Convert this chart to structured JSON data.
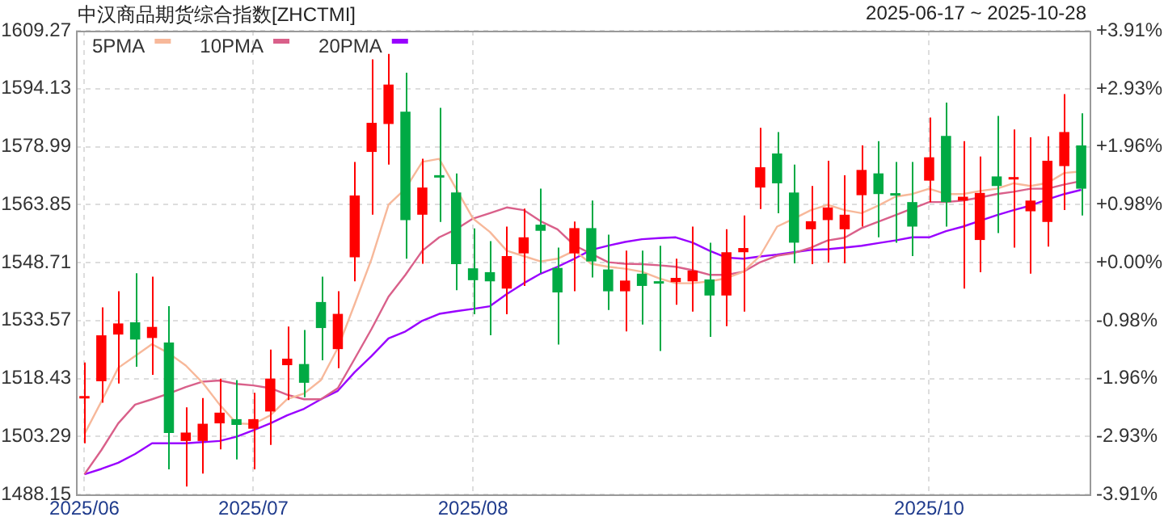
{
  "chart_data": {
    "type": "candlestick",
    "title": "中汉商品期货综合指数[ZHCTMI]",
    "subtitle": "2025-06-17 ~ 2025-10-28",
    "categories": [
      "2025/06",
      null,
      null,
      null,
      null,
      null,
      null,
      null,
      null,
      null,
      "2025/07",
      null,
      null,
      null,
      null,
      null,
      null,
      null,
      null,
      null,
      null,
      null,
      null,
      "2025/08",
      null,
      null,
      null,
      null,
      null,
      null,
      null,
      null,
      null,
      null,
      null,
      null,
      null,
      null,
      null,
      null,
      null,
      null,
      null,
      null,
      null,
      null,
      null,
      null,
      null,
      null,
      "2025/10",
      null,
      null,
      null,
      null,
      null,
      null,
      null,
      null,
      null
    ],
    "ohlc": [
      [
        1513.2,
        1522.6,
        1501.5,
        1513.4
      ],
      [
        1517.7,
        1537.0,
        1512.1,
        1529.7
      ],
      [
        1529.9,
        1541.2,
        1517.1,
        1532.8
      ],
      [
        1533.1,
        1545.9,
        1521.5,
        1528.6
      ],
      [
        1529.0,
        1545.0,
        1519.4,
        1531.9
      ],
      [
        1527.8,
        1537.3,
        1494.7,
        1504.2
      ],
      [
        1502.1,
        1510.9,
        1490.2,
        1504.3
      ],
      [
        1502.1,
        1513.3,
        1493.6,
        1506.6
      ],
      [
        1506.7,
        1518.4,
        1499.9,
        1509.5
      ],
      [
        1507.8,
        1518.0,
        1497.3,
        1506.3
      ],
      [
        1505.3,
        1514.7,
        1494.7,
        1507.8
      ],
      [
        1509.8,
        1526.0,
        1501.1,
        1518.4
      ],
      [
        1521.9,
        1532.0,
        1512.8,
        1523.6
      ],
      [
        1522.2,
        1531.1,
        1513.5,
        1517.3
      ],
      [
        1538.4,
        1545.0,
        1523.2,
        1531.6
      ],
      [
        1526.1,
        1541.2,
        1521.1,
        1535.3
      ],
      [
        1550.1,
        1575.0,
        1543.8,
        1566.2
      ],
      [
        1577.6,
        1601.8,
        1561.2,
        1585.2
      ],
      [
        1584.9,
        1603.2,
        1574.3,
        1595.2
      ],
      [
        1588.1,
        1598.3,
        1549.7,
        1559.8
      ],
      [
        1561.2,
        1575.8,
        1548.4,
        1568.3
      ],
      [
        1571.3,
        1589.1,
        1559.3,
        1570.9
      ],
      [
        1567.0,
        1572.0,
        1541.5,
        1548.3
      ],
      [
        1547.2,
        1557.6,
        1535.2,
        1544.1
      ],
      [
        1546.2,
        1554.3,
        1529.7,
        1543.8
      ],
      [
        1541.9,
        1558.1,
        1535.2,
        1550.4
      ],
      [
        1551.1,
        1562.8,
        1542.6,
        1555.3
      ],
      [
        1558.6,
        1568.0,
        1545.9,
        1557.0
      ],
      [
        1547.3,
        1552.6,
        1527.3,
        1540.9
      ],
      [
        1551.1,
        1559.4,
        1541.2,
        1557.7
      ],
      [
        1557.7,
        1564.9,
        1544.8,
        1549.0
      ],
      [
        1546.9,
        1556.0,
        1536.3,
        1541.2
      ],
      [
        1541.2,
        1551.8,
        1530.7,
        1544.0
      ],
      [
        1545.8,
        1551.8,
        1532.5,
        1542.6
      ],
      [
        1543.6,
        1553.1,
        1525.6,
        1543.2
      ],
      [
        1543.6,
        1549.7,
        1537.7,
        1544.7
      ],
      [
        1543.8,
        1558.1,
        1535.9,
        1546.6
      ],
      [
        1544.3,
        1553.9,
        1529.3,
        1540.1
      ],
      [
        1540.1,
        1557.4,
        1532.1,
        1551.4
      ],
      [
        1551.4,
        1561.0,
        1535.9,
        1552.5
      ],
      [
        1568.3,
        1583.9,
        1562.7,
        1573.6
      ],
      [
        1577.2,
        1582.8,
        1561.6,
        1569.4
      ],
      [
        1567.0,
        1574.3,
        1548.5,
        1553.9
      ],
      [
        1557.4,
        1568.7,
        1548.3,
        1559.5
      ],
      [
        1559.8,
        1575.3,
        1548.7,
        1563.1
      ],
      [
        1557.4,
        1571.5,
        1548.5,
        1561.2
      ],
      [
        1566.3,
        1579.3,
        1558.1,
        1572.9
      ],
      [
        1572.0,
        1580.4,
        1555.3,
        1566.6
      ],
      [
        1566.4,
        1575.0,
        1553.9,
        1566.2
      ],
      [
        1564.5,
        1575.0,
        1550.4,
        1558.1
      ],
      [
        1570.1,
        1586.6,
        1564.5,
        1576.2
      ],
      [
        1581.8,
        1590.5,
        1558.1,
        1564.5
      ],
      [
        1564.9,
        1580.4,
        1541.9,
        1565.9
      ],
      [
        1554.6,
        1576.4,
        1546.2,
        1566.9
      ],
      [
        1571.2,
        1587.0,
        1556.4,
        1568.7
      ],
      [
        1570.4,
        1583.5,
        1552.6,
        1570.6
      ],
      [
        1562.1,
        1581.4,
        1545.8,
        1564.9
      ],
      [
        1559.3,
        1581.7,
        1552.9,
        1575.3
      ],
      [
        1573.9,
        1592.7,
        1562.4,
        1582.8
      ],
      [
        1579.3,
        1587.7,
        1561.0,
        1568.0
      ]
    ],
    "colors": [
      "#ff0000",
      "#ff0000",
      "#ff0000",
      "#00aa44",
      "#ff0000",
      "#00aa44",
      "#ff0000",
      "#ff0000",
      "#ff0000",
      "#00aa44",
      "#ff0000",
      "#ff0000",
      "#ff0000",
      "#00aa44",
      "#00aa44",
      "#ff0000",
      "#ff0000",
      "#ff0000",
      "#ff0000",
      "#00aa44",
      "#ff0000",
      "#00aa44",
      "#00aa44",
      "#00aa44",
      "#00aa44",
      "#ff0000",
      "#ff0000",
      "#00aa44",
      "#00aa44",
      "#ff0000",
      "#00aa44",
      "#00aa44",
      "#ff0000",
      "#00aa44",
      "#00aa44",
      "#ff0000",
      "#ff0000",
      "#00aa44",
      "#ff0000",
      "#ff0000",
      "#ff0000",
      "#00aa44",
      "#00aa44",
      "#ff0000",
      "#ff0000",
      "#ff0000",
      "#ff0000",
      "#00aa44",
      "#00aa44",
      "#00aa44",
      "#ff0000",
      "#00aa44",
      "#ff0000",
      "#ff0000",
      "#00aa44",
      "#ff0000",
      "#ff0000",
      "#ff0000",
      "#ff0000",
      "#00aa44"
    ],
    "series": [
      {
        "name": "5PMA",
        "type": "line",
        "color": "#f7b89a",
        "values": [
          1503.9,
          1512.4,
          1521.2,
          1524.3,
          1527.4,
          1525.0,
          1521.8,
          1517.3,
          1511.6,
          1506.7,
          1506.5,
          1508.8,
          1513.0,
          1514.5,
          1518.0,
          1526.4,
          1537.9,
          1549.7,
          1563.8,
          1568.0,
          1575.0,
          1575.8,
          1568.0,
          1560.2,
          1556.7,
          1551.8,
          1550.4,
          1549.0,
          1549.7,
          1551.8,
          1548.4,
          1547.6,
          1547.1,
          1546.3,
          1544.6,
          1543.3,
          1543.3,
          1543.8,
          1544.6,
          1546.3,
          1550.5,
          1558.1,
          1560.2,
          1562.4,
          1563.8,
          1562.4,
          1561.6,
          1563.6,
          1565.9,
          1566.6,
          1568.0,
          1566.6,
          1566.6,
          1567.4,
          1568.0,
          1569.4,
          1568.7,
          1569.5,
          1572.1,
          1572.5
        ]
      },
      {
        "name": "10PMA",
        "type": "line",
        "color": "#d9608a",
        "values": [
          1493.4,
          1499.7,
          1506.7,
          1511.6,
          1513.0,
          1514.5,
          1516.2,
          1517.6,
          1517.9,
          1517.0,
          1516.6,
          1515.9,
          1514.2,
          1513.0,
          1513.0,
          1515.9,
          1523.6,
          1531.4,
          1539.8,
          1545.5,
          1551.8,
          1555.3,
          1557.4,
          1560.2,
          1561.6,
          1563.1,
          1562.4,
          1559.5,
          1557.4,
          1553.2,
          1551.0,
          1548.8,
          1548.4,
          1548.3,
          1548.0,
          1547.6,
          1546.7,
          1545.5,
          1545.5,
          1546.3,
          1548.8,
          1550.5,
          1551.2,
          1552.6,
          1554.5,
          1555.2,
          1557.7,
          1559.4,
          1561.1,
          1562.8,
          1564.5,
          1564.5,
          1564.9,
          1565.7,
          1566.6,
          1567.2,
          1568.0,
          1568.0,
          1569.1,
          1570.0
        ]
      },
      {
        "name": "20PMA",
        "type": "line",
        "color": "#9900ff",
        "values": [
          1493.4,
          1494.8,
          1496.4,
          1498.7,
          1501.5,
          1501.5,
          1501.5,
          1501.8,
          1502.1,
          1503.2,
          1504.9,
          1506.7,
          1508.8,
          1510.5,
          1513.0,
          1515.2,
          1520.1,
          1524.3,
          1528.9,
          1530.7,
          1533.5,
          1535.3,
          1536.0,
          1536.6,
          1537.3,
          1540.5,
          1543.3,
          1545.8,
          1547.6,
          1549.7,
          1552.0,
          1553.1,
          1554.1,
          1554.8,
          1555.1,
          1555.3,
          1553.9,
          1551.8,
          1550.0,
          1549.7,
          1550.3,
          1550.8,
          1551.4,
          1552.0,
          1552.2,
          1552.6,
          1553.1,
          1553.8,
          1554.5,
          1555.3,
          1555.3,
          1556.9,
          1558.1,
          1559.6,
          1561.1,
          1562.4,
          1563.6,
          1565.2,
          1566.6,
          1567.7
        ]
      }
    ],
    "marker": "none",
    "ylim": [
      1488.15,
      1609.27
    ],
    "yticks": [
      1488.15,
      1503.29,
      1518.43,
      1533.57,
      1548.71,
      1563.85,
      1578.99,
      1594.13,
      1609.27
    ],
    "y2lim": [
      -3.91,
      3.91
    ],
    "y2ticks": [
      {
        "value": -3.91,
        "label": "-3.91%"
      },
      {
        "value": -2.93,
        "label": "-2.93%"
      },
      {
        "value": -1.96,
        "label": "-1.96%"
      },
      {
        "value": -0.98,
        "label": "-0.98%"
      },
      {
        "value": 0,
        "label": "+0.00%"
      },
      {
        "value": 0.98,
        "label": "+0.98%"
      },
      {
        "value": 1.96,
        "label": "+1.96%"
      },
      {
        "value": 2.93,
        "label": "+2.93%"
      },
      {
        "value": 3.91,
        "label": "+3.91%"
      }
    ],
    "grid": true,
    "legend": "top left"
  }
}
